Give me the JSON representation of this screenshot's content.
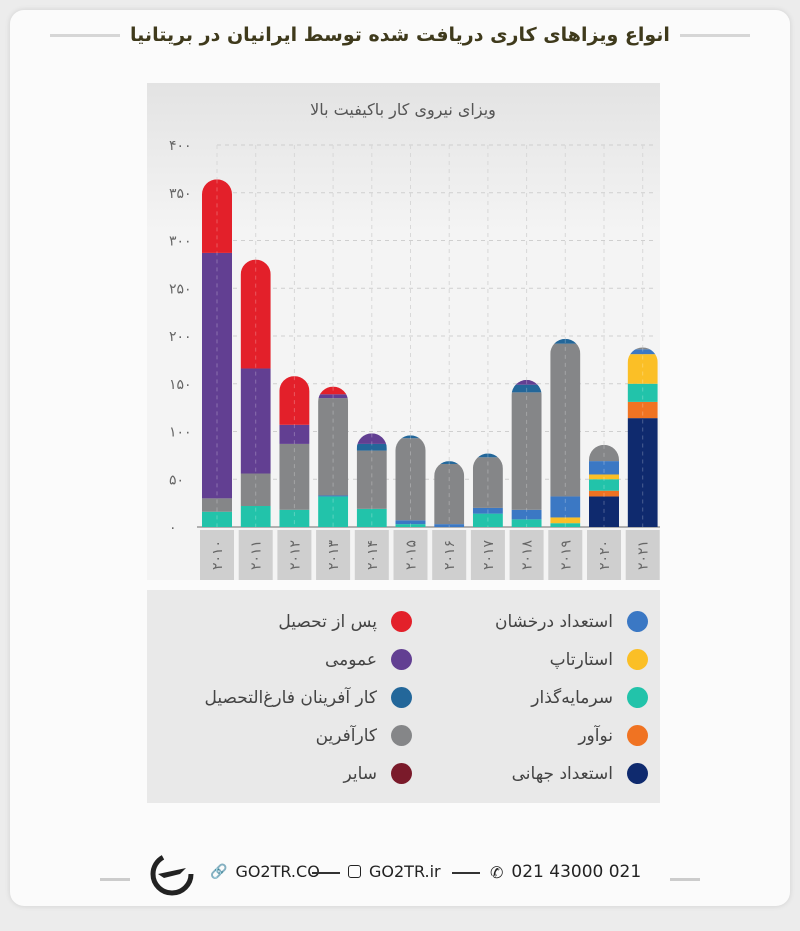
{
  "header": {
    "title": "انواع ویزاهای کاری دریافت شده توسط ایرانیان در بریتانیا"
  },
  "chart_data": {
    "type": "bar",
    "stacked": true,
    "title": "ویزای نیروی کار باکیفیت بالا",
    "xlabel": "",
    "ylabel": "",
    "ylim": [
      0,
      400
    ],
    "yticks": [
      0,
      50,
      100,
      150,
      200,
      250,
      300,
      350,
      400
    ],
    "ytick_labels": [
      "۰",
      "۵۰",
      "۱۰۰",
      "۱۵۰",
      "۲۰۰",
      "۲۵۰",
      "۳۰۰",
      "۳۵۰",
      "۴۰۰"
    ],
    "categories": [
      "2010",
      "2011",
      "2012",
      "2013",
      "2014",
      "2015",
      "2016",
      "2017",
      "2018",
      "2019",
      "2020",
      "2021"
    ],
    "category_labels": [
      "۲۰۱۰",
      "۲۰۱۱",
      "۲۰۱۲",
      "۲۰۱۳",
      "۲۰۱۴",
      "۲۰۱۵",
      "۲۰۱۶",
      "۲۰۱۷",
      "۲۰۱۸",
      "۲۰۱۹",
      "۲۰۲۰",
      "۲۰۲۱"
    ],
    "grid": true,
    "series": [
      {
        "name": "استعداد جهانی",
        "color": "#0f2a6e",
        "values": [
          0,
          0,
          0,
          0,
          0,
          0,
          0,
          0,
          0,
          0,
          32,
          114
        ]
      },
      {
        "name": "نوآور",
        "color": "#f07322",
        "values": [
          0,
          0,
          0,
          0,
          0,
          0,
          0,
          0,
          0,
          0,
          6,
          17
        ]
      },
      {
        "name": "سرمایه‌گذار",
        "color": "#22c3aa",
        "values": [
          16,
          22,
          18,
          32,
          19,
          3,
          0,
          14,
          8,
          4,
          12,
          19
        ]
      },
      {
        "name": "استارتاپ",
        "color": "#fbbf26",
        "values": [
          0,
          0,
          0,
          0,
          0,
          0,
          0,
          0,
          0,
          6,
          5,
          31
        ]
      },
      {
        "name": "استعداد درخشان",
        "color": "#3b78c4",
        "values": [
          0,
          0,
          0,
          1,
          0,
          4,
          3,
          6,
          10,
          22,
          14,
          5
        ]
      },
      {
        "name": "کارآفرین",
        "color": "#858688",
        "values": [
          14,
          34,
          69,
          102,
          61,
          86,
          63,
          53,
          123,
          160,
          17,
          2
        ]
      },
      {
        "name": "کار آفرینان فارغ‌التحصیل",
        "color": "#23679a",
        "values": [
          0,
          0,
          0,
          0,
          7,
          3,
          3,
          4,
          8,
          5,
          0,
          0
        ]
      },
      {
        "name": "عمومی",
        "color": "#623f92",
        "values": [
          257,
          110,
          20,
          4,
          11,
          0,
          0,
          0,
          5,
          0,
          0,
          0
        ]
      },
      {
        "name": "پس از تحصیل",
        "color": "#e3202a",
        "values": [
          77,
          114,
          51,
          8,
          0,
          0,
          0,
          0,
          0,
          0,
          0,
          0
        ]
      },
      {
        "name": "سایر",
        "color": "#7a1a2a",
        "values": [
          0,
          0,
          0,
          0,
          0,
          0,
          0,
          0,
          0,
          0,
          0,
          0
        ]
      }
    ]
  },
  "legend": {
    "right": [
      {
        "label": "استعداد درخشان",
        "color": "#3b78c4"
      },
      {
        "label": "استارتاپ",
        "color": "#fbbf26"
      },
      {
        "label": "سرمایه‌گذار",
        "color": "#22c3aa"
      },
      {
        "label": "نوآور",
        "color": "#f07322"
      },
      {
        "label": "استعداد جهانی",
        "color": "#0f2a6e"
      }
    ],
    "left": [
      {
        "label": "پس از تحصیل",
        "color": "#e3202a"
      },
      {
        "label": "عمومی",
        "color": "#623f92"
      },
      {
        "label": "کار آفرینان فارغ‌التحصیل",
        "color": "#23679a"
      },
      {
        "label": "کارآفرین",
        "color": "#858688"
      },
      {
        "label": "سایر",
        "color": "#7a1a2a"
      }
    ]
  },
  "footer": {
    "website": "GO2TR.CO",
    "instagram": "GO2TR.ir",
    "phone": "021 43000 021"
  }
}
